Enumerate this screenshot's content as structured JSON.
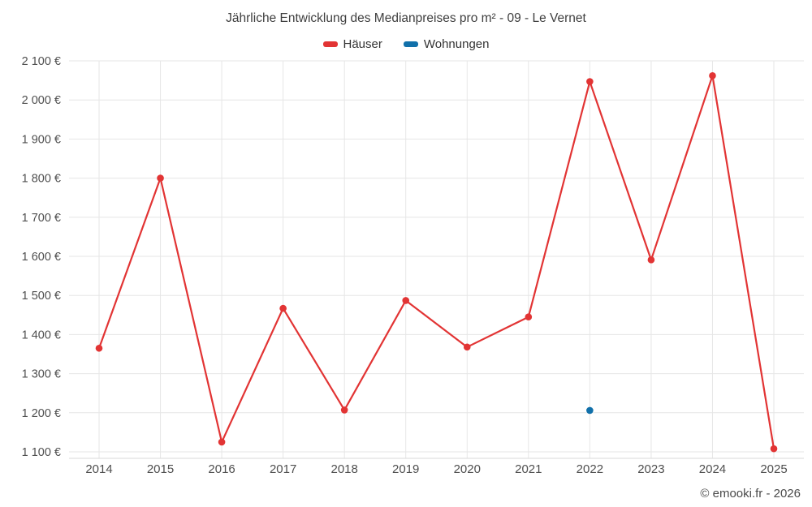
{
  "chart_data": {
    "type": "line",
    "title": "Jährliche Entwicklung des Medianpreises pro m² - 09 - Le Vernet",
    "x": [
      2014,
      2015,
      2016,
      2017,
      2018,
      2019,
      2020,
      2021,
      2022,
      2023,
      2024,
      2025
    ],
    "series": [
      {
        "name": "Häuser",
        "color": "#e23434",
        "style": "line-with-markers",
        "points": {
          "2014": 1365,
          "2015": 1800,
          "2016": 1125,
          "2017": 1467,
          "2018": 1207,
          "2019": 1487,
          "2020": 1368,
          "2021": 1445,
          "2022": 2047,
          "2023": 1591,
          "2024": 2062,
          "2025": 1108
        }
      },
      {
        "name": "Wohnungen",
        "color": "#1170aa",
        "style": "markers-only",
        "points": {
          "2022": 1206
        }
      }
    ],
    "ylim": [
      1100,
      2100
    ],
    "ytick_step": 100,
    "y_suffix": " €",
    "grid": true,
    "legend_position": "top-center"
  },
  "footer": {
    "copyright": "© emooki.fr - 2026"
  },
  "theme": {
    "grid_color": "#e6e6e6",
    "axis_line_color": "#d8d8d8",
    "tick_label_color": "#4f4f4f"
  }
}
